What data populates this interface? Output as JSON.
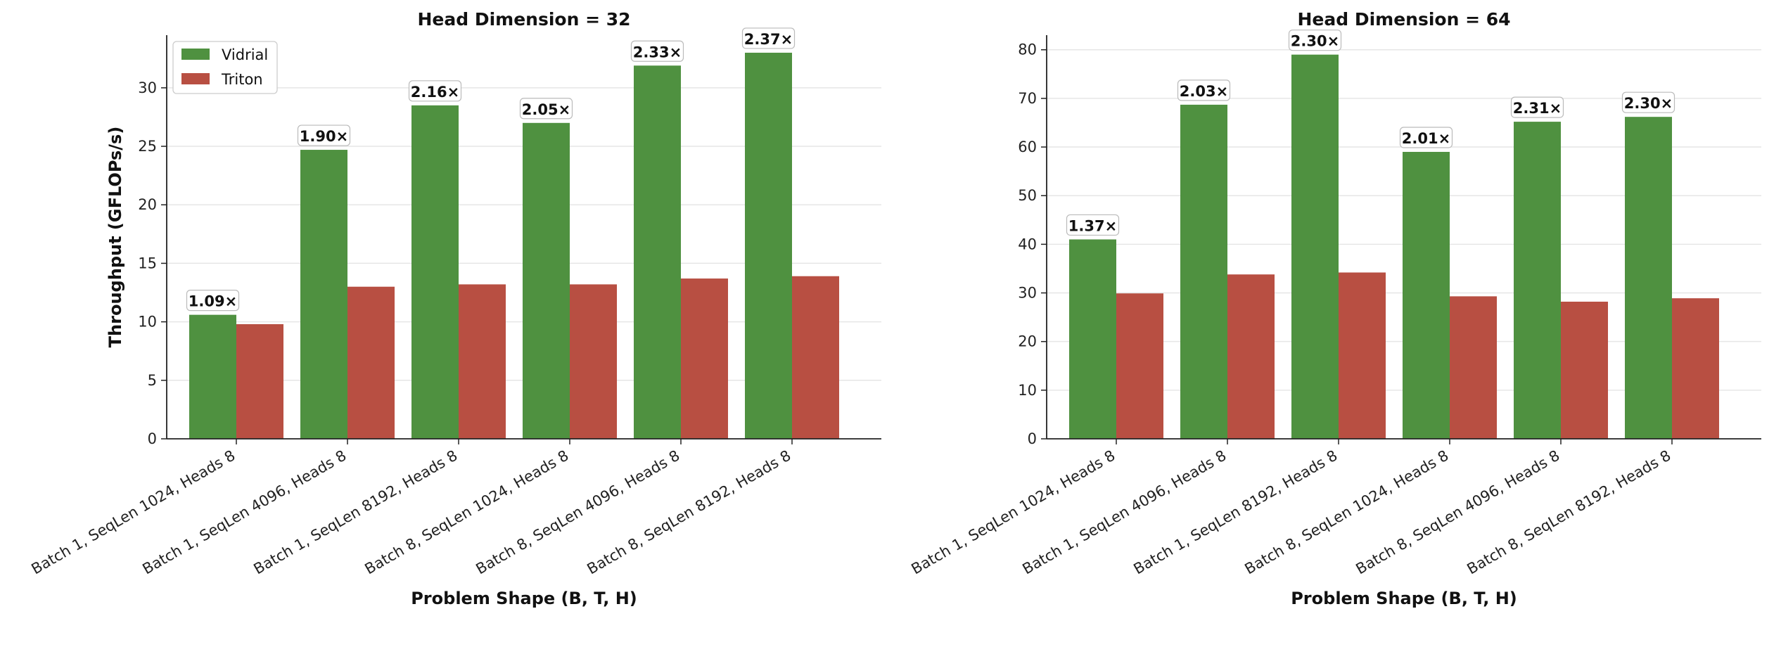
{
  "figure": {
    "xlabel": "Problem Shape (B, T, H)"
  },
  "legend": {
    "placement": "upper left",
    "entries": [
      "Vidrial",
      "Triton"
    ]
  },
  "colors": {
    "vidrial": "#4f9140",
    "triton": "#b84f42",
    "axis": "#222222",
    "grid": "#e6e6e6",
    "label_border": "#bbbbbb"
  },
  "chart_data": [
    {
      "type": "bar",
      "title": "Head Dimension = 32",
      "xlabel": "Problem Shape (B, T, H)",
      "ylabel": "Throughput (GFLOPs/s)",
      "ylim": [
        0,
        34.5
      ],
      "yticks": [
        0,
        5,
        10,
        15,
        20,
        25,
        30
      ],
      "grid": "y",
      "legend": "upper left",
      "categories": [
        "Batch 1, SeqLen 1024, Heads 8",
        "Batch 1, SeqLen 4096, Heads 8",
        "Batch 1, SeqLen 8192, Heads 8",
        "Batch 8, SeqLen 1024, Heads 8",
        "Batch 8, SeqLen 4096, Heads 8",
        "Batch 8, SeqLen 8192, Heads 8"
      ],
      "series": [
        {
          "name": "Vidrial",
          "values": [
            10.6,
            24.7,
            28.5,
            27.0,
            31.9,
            33.0
          ]
        },
        {
          "name": "Triton",
          "values": [
            9.8,
            13.0,
            13.2,
            13.2,
            13.7,
            13.9
          ]
        }
      ],
      "annotations": [
        "1.09×",
        "1.90×",
        "2.16×",
        "2.05×",
        "2.33×",
        "2.37×"
      ]
    },
    {
      "type": "bar",
      "title": "Head Dimension = 64",
      "xlabel": "Problem Shape (B, T, H)",
      "ylabel": "",
      "ylim": [
        0,
        83
      ],
      "yticks": [
        0,
        10,
        20,
        30,
        40,
        50,
        60,
        70,
        80
      ],
      "grid": "y",
      "categories": [
        "Batch 1, SeqLen 1024, Heads 8",
        "Batch 1, SeqLen 4096, Heads 8",
        "Batch 1, SeqLen 8192, Heads 8",
        "Batch 8, SeqLen 1024, Heads 8",
        "Batch 8, SeqLen 4096, Heads 8",
        "Batch 8, SeqLen 8192, Heads 8"
      ],
      "series": [
        {
          "name": "Vidrial",
          "values": [
            41.0,
            68.7,
            79.0,
            59.0,
            65.2,
            66.2
          ]
        },
        {
          "name": "Triton",
          "values": [
            29.9,
            33.8,
            34.2,
            29.3,
            28.2,
            28.9
          ]
        }
      ],
      "annotations": [
        "1.37×",
        "2.03×",
        "2.30×",
        "2.01×",
        "2.31×",
        "2.30×"
      ]
    }
  ]
}
